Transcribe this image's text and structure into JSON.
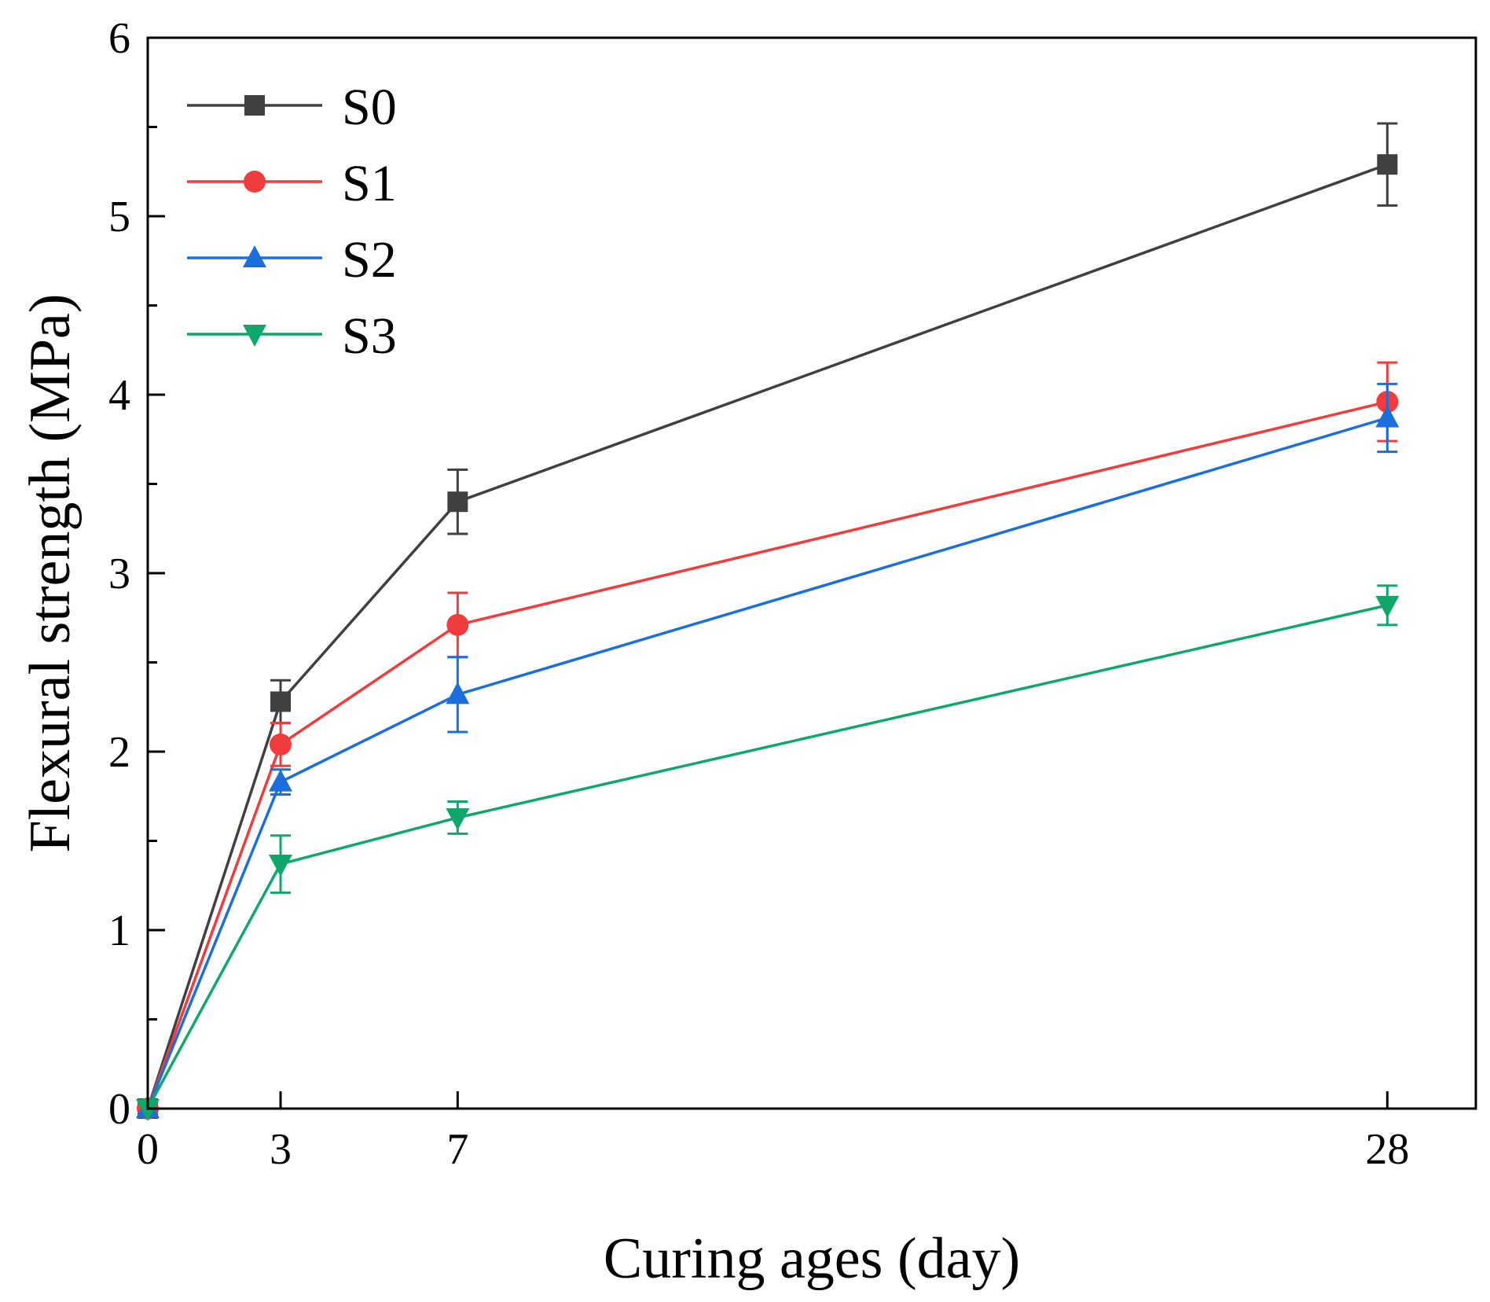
{
  "chart_data": {
    "type": "line",
    "title": "",
    "xlabel": "Curing ages (day)",
    "ylabel": "Flexural strength (MPa)",
    "xlim": [
      0,
      30
    ],
    "ylim": [
      0,
      6
    ],
    "x": [
      0,
      3,
      7,
      28
    ],
    "xticks": [
      0,
      3,
      7,
      28
    ],
    "xtick_labels": [
      "0",
      "3",
      "7",
      "28"
    ],
    "yticks": [
      0,
      1,
      2,
      3,
      4,
      5,
      6
    ],
    "ytick_labels": [
      "0",
      "1",
      "2",
      "3",
      "4",
      "5",
      "6"
    ],
    "legend_position": "top-left",
    "grid": false,
    "series": [
      {
        "name": "S0",
        "color": "#404040",
        "marker": "square",
        "values": [
          0,
          2.28,
          3.4,
          5.29
        ],
        "errors": [
          0,
          0.12,
          0.18,
          0.23
        ]
      },
      {
        "name": "S1",
        "color": "#f03c3c",
        "marker": "circle",
        "values": [
          0,
          2.04,
          2.71,
          3.96
        ],
        "errors": [
          0,
          0.12,
          0.18,
          0.22
        ]
      },
      {
        "name": "S2",
        "color": "#1a6fdc",
        "marker": "triangle-up",
        "values": [
          0,
          1.83,
          2.32,
          3.87
        ],
        "errors": [
          0,
          0.07,
          0.21,
          0.19
        ]
      },
      {
        "name": "S3",
        "color": "#0fa86a",
        "marker": "triangle-down",
        "values": [
          0,
          1.37,
          1.63,
          2.82
        ],
        "errors": [
          0,
          0.16,
          0.09,
          0.11
        ]
      }
    ]
  }
}
